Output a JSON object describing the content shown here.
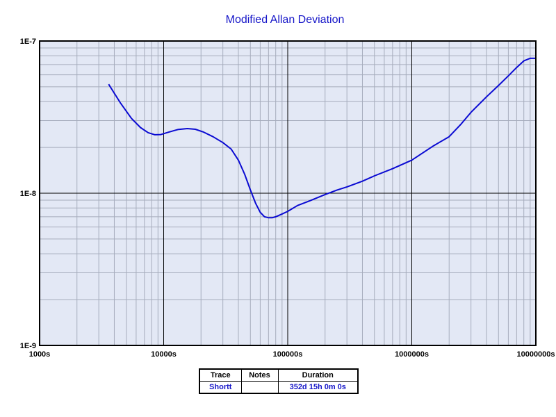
{
  "chart_data": {
    "type": "line",
    "title": "Modified Allan Deviation",
    "xlabel": "",
    "ylabel": "",
    "xscale": "log",
    "yscale": "log",
    "xlim": [
      1000,
      10000000
    ],
    "ylim": [
      1e-09,
      1e-07
    ],
    "grid": true,
    "x_ticks": [
      {
        "value": 1000,
        "label": "1000s"
      },
      {
        "value": 10000,
        "label": "10000s"
      },
      {
        "value": 100000,
        "label": "100000s"
      },
      {
        "value": 1000000,
        "label": "1000000s"
      },
      {
        "value": 10000000,
        "label": "10000000s"
      }
    ],
    "y_ticks": [
      {
        "value": 1e-09,
        "label": "1E-9"
      },
      {
        "value": 1e-08,
        "label": "1E-8"
      },
      {
        "value": 1e-07,
        "label": "1E-7"
      }
    ],
    "colors": {
      "plot_background": "#e3e8f5",
      "grid_major": "#000000",
      "grid_minor": "#a6acbc",
      "series": "#0a0ad2",
      "title": "#1515c8"
    },
    "series": [
      {
        "name": "Shortt",
        "color": "#0a0ad2",
        "x": [
          3600,
          4500,
          5500,
          6500,
          7500,
          8500,
          9500,
          11000,
          13000,
          15500,
          18000,
          21000,
          25000,
          30000,
          35000,
          40000,
          45000,
          50000,
          55000,
          60000,
          65000,
          70000,
          75000,
          80000,
          90000,
          100000,
          120000,
          150000,
          200000,
          250000,
          300000,
          400000,
          500000,
          700000,
          1000000,
          1500000,
          2000000,
          2500000,
          3000000,
          4000000,
          5000000,
          6000000,
          7000000,
          8000000,
          9000000,
          10000000
        ],
        "y": [
          5.2e-08,
          3.9e-08,
          3.1e-08,
          2.7e-08,
          2.5e-08,
          2.42e-08,
          2.43e-08,
          2.52e-08,
          2.62e-08,
          2.66e-08,
          2.63e-08,
          2.52e-08,
          2.35e-08,
          2.15e-08,
          1.95e-08,
          1.65e-08,
          1.33e-08,
          1.05e-08,
          8.6e-09,
          7.5e-09,
          7e-09,
          6.9e-09,
          6.9e-09,
          7e-09,
          7.3e-09,
          7.6e-09,
          8.3e-09,
          8.9e-09,
          9.8e-09,
          1.05e-08,
          1.1e-08,
          1.2e-08,
          1.3e-08,
          1.45e-08,
          1.65e-08,
          2.05e-08,
          2.35e-08,
          2.85e-08,
          3.4e-08,
          4.3e-08,
          5.1e-08,
          5.9e-08,
          6.7e-08,
          7.4e-08,
          7.7e-08,
          7.7e-08
        ]
      }
    ]
  },
  "legend": {
    "headers": [
      "Trace",
      "Notes",
      "Duration"
    ],
    "rows": [
      {
        "trace": "Shortt",
        "notes": "",
        "duration": "352d 15h 0m 0s"
      }
    ]
  }
}
